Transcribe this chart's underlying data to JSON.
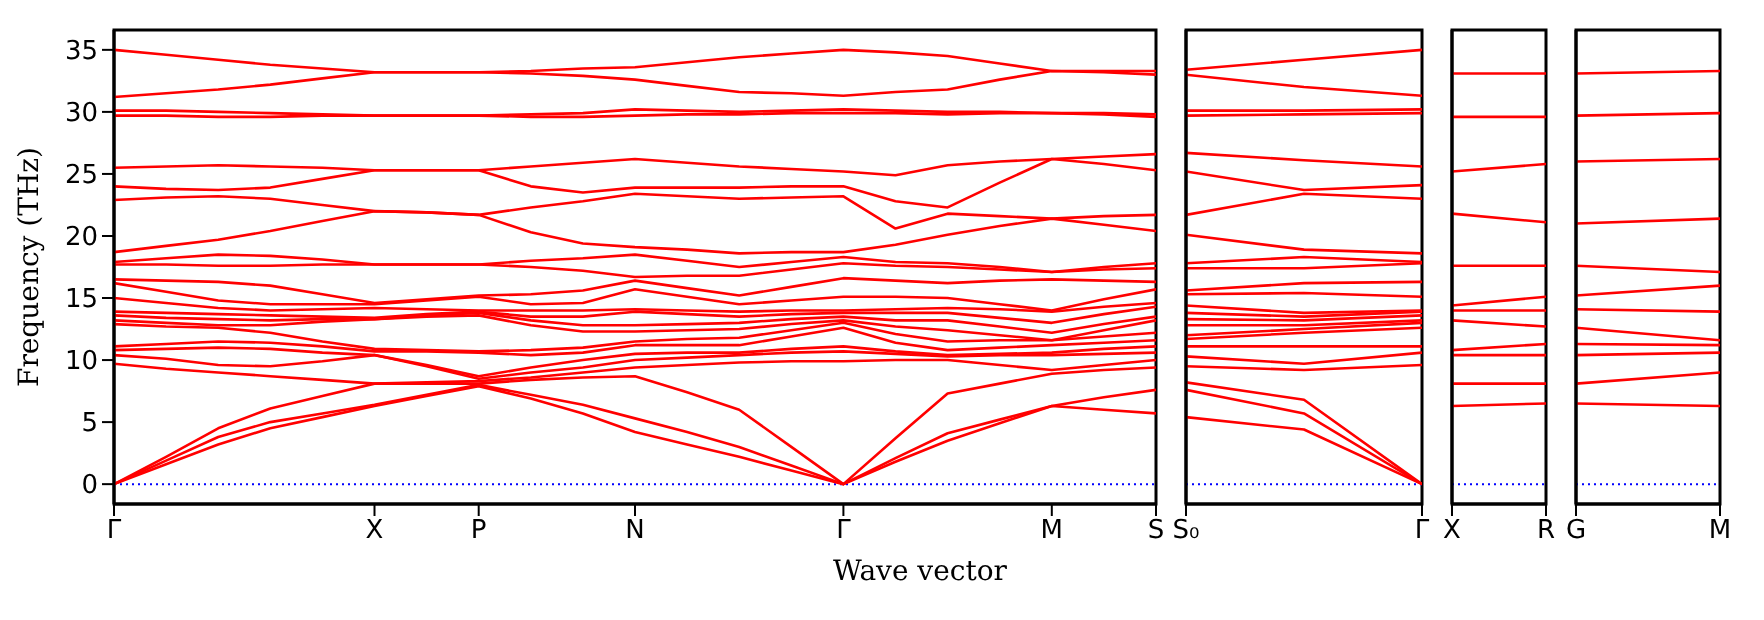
{
  "chart_data": [
    {
      "type": "line",
      "ylabel": "Frequency (THz)",
      "xlabel": "Wave vector",
      "categories": [
        "Γ",
        null,
        null,
        null,
        null,
        "X",
        null,
        "P",
        null,
        null,
        "N",
        null,
        null,
        null,
        "Γ",
        null,
        null,
        null,
        "M",
        null,
        "S"
      ],
      "ylim": [
        -1.6,
        36.6
      ],
      "yticks": [
        0,
        5,
        10,
        15,
        20,
        25,
        30,
        35
      ],
      "marker": "none",
      "line_style": "solid",
      "ref_lines": [
        {
          "axis": "y",
          "value": 0,
          "color": "#0000ff",
          "line_style": "dotted"
        }
      ],
      "series": [
        {
          "color": "#ff0000",
          "values": [
            0,
            1.6,
            3.2,
            4.5,
            5.4,
            6.3,
            7.1,
            7.9,
            6.9,
            5.7,
            4.2,
            3.2,
            2.2,
            1.1,
            0,
            1.8,
            3.5,
            4.9,
            6.3,
            6.0,
            5.7
          ]
        },
        {
          "color": "#ff0000",
          "values": [
            0,
            1.9,
            3.8,
            5.0,
            5.7,
            6.4,
            7.2,
            8.0,
            7.2,
            6.4,
            5.3,
            4.2,
            3.0,
            1.5,
            0,
            2.1,
            4.1,
            5.2,
            6.3,
            7.0,
            7.6
          ]
        },
        {
          "color": "#ff0000",
          "values": [
            0,
            2.2,
            4.5,
            6.1,
            7.1,
            8.1,
            8.1,
            8.1,
            8.4,
            8.6,
            8.7,
            7.4,
            6.0,
            3.0,
            0,
            3.7,
            7.3,
            8.1,
            8.9,
            9.2,
            9.4
          ]
        },
        {
          "color": "#ff0000",
          "values": [
            9.7,
            9.3,
            9.0,
            8.7,
            8.4,
            8.1,
            8.2,
            8.3,
            8.6,
            9.0,
            9.4,
            9.6,
            9.8,
            9.9,
            9.9,
            10.0,
            10.0,
            9.6,
            9.2,
            9.6,
            10.0
          ]
        },
        {
          "color": "#ff0000",
          "values": [
            10.4,
            10.1,
            9.6,
            9.5,
            9.9,
            10.4,
            9.5,
            8.5,
            9.0,
            9.4,
            10.0,
            10.2,
            10.4,
            10.6,
            10.7,
            10.5,
            10.3,
            10.4,
            10.4,
            10.5,
            10.6
          ]
        },
        {
          "color": "#ff0000",
          "values": [
            10.8,
            10.9,
            11.0,
            10.9,
            10.6,
            10.4,
            9.6,
            8.7,
            9.4,
            10.0,
            10.5,
            10.6,
            10.6,
            10.9,
            11.1,
            10.7,
            10.4,
            10.5,
            10.6,
            10.9,
            11.1
          ]
        },
        {
          "color": "#ff0000",
          "values": [
            11.1,
            11.3,
            11.5,
            11.4,
            11.1,
            10.7,
            10.7,
            10.6,
            10.4,
            10.6,
            11.2,
            11.2,
            11.2,
            11.9,
            12.6,
            11.4,
            10.8,
            11.0,
            11.2,
            11.4,
            11.6
          ]
        },
        {
          "color": "#ff0000",
          "values": [
            12.9,
            12.7,
            12.6,
            12.2,
            11.5,
            10.9,
            10.8,
            10.7,
            10.8,
            11.0,
            11.5,
            11.7,
            11.8,
            12.4,
            13.0,
            12.1,
            11.5,
            11.6,
            11.6,
            11.9,
            12.2
          ]
        },
        {
          "color": "#ff0000",
          "values": [
            13.2,
            13.0,
            12.8,
            12.8,
            13.1,
            13.3,
            13.5,
            13.6,
            12.8,
            12.3,
            12.3,
            12.4,
            12.5,
            12.9,
            13.2,
            12.7,
            12.4,
            12.0,
            11.6,
            12.4,
            13.2
          ]
        },
        {
          "color": "#ff0000",
          "values": [
            13.6,
            13.4,
            13.3,
            13.2,
            13.3,
            13.3,
            13.6,
            13.8,
            13.2,
            12.8,
            12.8,
            12.9,
            13.0,
            13.3,
            13.5,
            13.2,
            13.2,
            12.7,
            12.2,
            12.9,
            13.5
          ]
        },
        {
          "color": "#ff0000",
          "values": [
            13.9,
            13.8,
            13.7,
            13.6,
            13.5,
            13.4,
            13.7,
            13.9,
            13.5,
            13.5,
            13.9,
            13.7,
            13.5,
            13.7,
            13.8,
            13.8,
            13.8,
            13.4,
            13.0,
            13.7,
            14.3
          ]
        },
        {
          "color": "#ff0000",
          "values": [
            15.0,
            14.6,
            14.2,
            14.0,
            14.1,
            14.2,
            14.1,
            14.0,
            14.0,
            14.0,
            14.1,
            14.0,
            13.9,
            14.0,
            14.0,
            14.1,
            14.2,
            14.1,
            13.9,
            14.3,
            14.6
          ]
        },
        {
          "color": "#ff0000",
          "values": [
            16.2,
            15.5,
            14.8,
            14.5,
            14.5,
            14.5,
            14.8,
            15.1,
            14.5,
            14.6,
            15.7,
            15.1,
            14.5,
            14.8,
            15.1,
            15.1,
            15.0,
            14.5,
            14.0,
            14.9,
            15.7
          ]
        },
        {
          "color": "#ff0000",
          "values": [
            16.5,
            16.4,
            16.3,
            16.0,
            15.3,
            14.6,
            14.9,
            15.2,
            15.3,
            15.6,
            16.4,
            15.8,
            15.2,
            15.9,
            16.6,
            16.4,
            16.2,
            16.4,
            16.5,
            16.4,
            16.3
          ]
        },
        {
          "color": "#ff0000",
          "values": [
            17.7,
            17.7,
            17.6,
            17.6,
            17.7,
            17.7,
            17.7,
            17.7,
            17.5,
            17.2,
            16.7,
            16.8,
            16.8,
            17.3,
            17.8,
            17.6,
            17.5,
            17.3,
            17.1,
            17.3,
            17.4
          ]
        },
        {
          "color": "#ff0000",
          "values": [
            17.9,
            18.2,
            18.5,
            18.4,
            18.1,
            17.7,
            17.7,
            17.7,
            18.0,
            18.2,
            18.5,
            18.0,
            17.5,
            17.9,
            18.3,
            17.9,
            17.8,
            17.5,
            17.1,
            17.5,
            17.8
          ]
        },
        {
          "color": "#ff0000",
          "values": [
            18.7,
            19.2,
            19.7,
            20.4,
            21.2,
            22.0,
            21.9,
            21.7,
            20.3,
            19.4,
            19.1,
            18.9,
            18.6,
            18.7,
            18.7,
            19.3,
            20.1,
            20.8,
            21.4,
            20.9,
            20.4
          ]
        },
        {
          "color": "#ff0000",
          "values": [
            22.9,
            23.1,
            23.2,
            23.0,
            22.5,
            22.0,
            21.9,
            21.7,
            22.3,
            22.8,
            23.4,
            23.2,
            23.0,
            23.1,
            23.2,
            20.6,
            21.8,
            21.6,
            21.4,
            21.6,
            21.7
          ]
        },
        {
          "color": "#ff0000",
          "values": [
            24.0,
            23.8,
            23.7,
            23.9,
            24.6,
            25.3,
            25.3,
            25.3,
            24.0,
            23.5,
            23.9,
            23.9,
            23.9,
            24.0,
            24.0,
            22.8,
            22.3,
            24.3,
            26.2,
            25.8,
            25.3
          ]
        },
        {
          "color": "#ff0000",
          "values": [
            25.5,
            25.6,
            25.7,
            25.6,
            25.5,
            25.3,
            25.3,
            25.3,
            25.6,
            25.9,
            26.2,
            25.9,
            25.6,
            25.4,
            25.2,
            24.9,
            25.7,
            26.0,
            26.2,
            26.4,
            26.6
          ]
        },
        {
          "color": "#ff0000",
          "values": [
            29.7,
            29.7,
            29.6,
            29.6,
            29.7,
            29.7,
            29.7,
            29.7,
            29.6,
            29.6,
            29.7,
            29.8,
            29.8,
            29.9,
            29.9,
            29.9,
            29.8,
            29.9,
            29.9,
            29.8,
            29.6
          ]
        },
        {
          "color": "#ff0000",
          "values": [
            30.1,
            30.1,
            30.0,
            29.9,
            29.8,
            29.7,
            29.7,
            29.7,
            29.8,
            29.9,
            30.2,
            30.1,
            30.0,
            30.1,
            30.2,
            30.1,
            30.0,
            30.0,
            29.9,
            29.9,
            29.8
          ]
        },
        {
          "color": "#ff0000",
          "values": [
            31.2,
            31.5,
            31.8,
            32.2,
            32.7,
            33.2,
            33.2,
            33.2,
            33.1,
            32.9,
            32.6,
            32.1,
            31.6,
            31.5,
            31.3,
            31.6,
            31.8,
            32.6,
            33.3,
            33.2,
            33.0
          ]
        },
        {
          "color": "#ff0000",
          "values": [
            35.0,
            34.6,
            34.2,
            33.8,
            33.5,
            33.2,
            33.2,
            33.2,
            33.3,
            33.5,
            33.6,
            34.0,
            34.4,
            34.7,
            35.0,
            34.8,
            34.5,
            33.9,
            33.3,
            33.3,
            33.3
          ]
        }
      ]
    },
    {
      "type": "line",
      "categories": [
        "S₀",
        null,
        "Γ"
      ],
      "ylim": [
        -1.6,
        36.6
      ],
      "tick_labels": "x",
      "marker": "none",
      "line_style": "solid",
      "ref_lines": [
        {
          "axis": "y",
          "value": 0,
          "color": "#0000ff",
          "line_style": "dotted"
        }
      ],
      "series": [
        {
          "color": "#ff0000",
          "values": [
            5.4,
            4.4,
            0
          ]
        },
        {
          "color": "#ff0000",
          "values": [
            7.6,
            5.7,
            0
          ]
        },
        {
          "color": "#ff0000",
          "values": [
            8.2,
            6.8,
            0
          ]
        },
        {
          "color": "#ff0000",
          "values": [
            9.5,
            9.2,
            9.6
          ]
        },
        {
          "color": "#ff0000",
          "values": [
            10.3,
            9.7,
            10.6
          ]
        },
        {
          "color": "#ff0000",
          "values": [
            11.1,
            11.1,
            11.1
          ]
        },
        {
          "color": "#ff0000",
          "values": [
            11.7,
            12.2,
            12.6
          ]
        },
        {
          "color": "#ff0000",
          "values": [
            12.0,
            12.5,
            13.0
          ]
        },
        {
          "color": "#ff0000",
          "values": [
            12.8,
            12.8,
            13.2
          ]
        },
        {
          "color": "#ff0000",
          "values": [
            13.3,
            13.2,
            13.6
          ]
        },
        {
          "color": "#ff0000",
          "values": [
            13.8,
            13.5,
            13.9
          ]
        },
        {
          "color": "#ff0000",
          "values": [
            14.4,
            13.8,
            14.0
          ]
        },
        {
          "color": "#ff0000",
          "values": [
            15.3,
            15.4,
            15.1
          ]
        },
        {
          "color": "#ff0000",
          "values": [
            15.6,
            16.2,
            16.3
          ]
        },
        {
          "color": "#ff0000",
          "values": [
            17.4,
            17.4,
            17.8
          ]
        },
        {
          "color": "#ff0000",
          "values": [
            17.8,
            18.3,
            17.9
          ]
        },
        {
          "color": "#ff0000",
          "values": [
            20.1,
            18.9,
            18.6
          ]
        },
        {
          "color": "#ff0000",
          "values": [
            21.7,
            23.4,
            23.0
          ]
        },
        {
          "color": "#ff0000",
          "values": [
            25.2,
            23.7,
            24.1
          ]
        },
        {
          "color": "#ff0000",
          "values": [
            26.7,
            26.1,
            25.6
          ]
        },
        {
          "color": "#ff0000",
          "values": [
            29.7,
            29.8,
            29.9
          ]
        },
        {
          "color": "#ff0000",
          "values": [
            30.1,
            30.1,
            30.2
          ]
        },
        {
          "color": "#ff0000",
          "values": [
            33.0,
            32.0,
            31.3
          ]
        },
        {
          "color": "#ff0000",
          "values": [
            33.4,
            34.2,
            35.0
          ]
        }
      ]
    },
    {
      "type": "line",
      "categories": [
        "X",
        "R"
      ],
      "ylim": [
        -1.6,
        36.6
      ],
      "tick_labels": "x",
      "marker": "none",
      "line_style": "solid",
      "ref_lines": [
        {
          "axis": "y",
          "value": 0,
          "color": "#0000ff",
          "line_style": "dotted"
        }
      ],
      "series": [
        {
          "color": "#ff0000",
          "values": [
            6.3,
            6.5
          ]
        },
        {
          "color": "#ff0000",
          "values": [
            8.1,
            8.1
          ]
        },
        {
          "color": "#ff0000",
          "values": [
            10.4,
            10.4
          ]
        },
        {
          "color": "#ff0000",
          "values": [
            10.8,
            11.3
          ]
        },
        {
          "color": "#ff0000",
          "values": [
            13.2,
            12.7
          ]
        },
        {
          "color": "#ff0000",
          "values": [
            14.0,
            14.0
          ]
        },
        {
          "color": "#ff0000",
          "values": [
            14.4,
            15.1
          ]
        },
        {
          "color": "#ff0000",
          "values": [
            17.6,
            17.6
          ]
        },
        {
          "color": "#ff0000",
          "values": [
            21.8,
            21.1
          ]
        },
        {
          "color": "#ff0000",
          "values": [
            25.2,
            25.8
          ]
        },
        {
          "color": "#ff0000",
          "values": [
            29.6,
            29.6
          ]
        },
        {
          "color": "#ff0000",
          "values": [
            33.1,
            33.1
          ]
        }
      ]
    },
    {
      "type": "line",
      "categories": [
        "G",
        "M"
      ],
      "ylim": [
        -1.6,
        36.6
      ],
      "tick_labels": "x",
      "marker": "none",
      "line_style": "solid",
      "ref_lines": [
        {
          "axis": "y",
          "value": 0,
          "color": "#0000ff",
          "line_style": "dotted"
        }
      ],
      "series": [
        {
          "color": "#ff0000",
          "values": [
            6.5,
            6.3
          ]
        },
        {
          "color": "#ff0000",
          "values": [
            8.1,
            9.0
          ]
        },
        {
          "color": "#ff0000",
          "values": [
            10.4,
            10.6
          ]
        },
        {
          "color": "#ff0000",
          "values": [
            11.3,
            11.2
          ]
        },
        {
          "color": "#ff0000",
          "values": [
            12.6,
            11.6
          ]
        },
        {
          "color": "#ff0000",
          "values": [
            14.1,
            13.9
          ]
        },
        {
          "color": "#ff0000",
          "values": [
            15.2,
            16.0
          ]
        },
        {
          "color": "#ff0000",
          "values": [
            17.6,
            17.1
          ]
        },
        {
          "color": "#ff0000",
          "values": [
            21.0,
            21.4
          ]
        },
        {
          "color": "#ff0000",
          "values": [
            26.0,
            26.2
          ]
        },
        {
          "color": "#ff0000",
          "values": [
            29.7,
            29.9
          ]
        },
        {
          "color": "#ff0000",
          "values": [
            33.1,
            33.3
          ]
        }
      ]
    }
  ]
}
